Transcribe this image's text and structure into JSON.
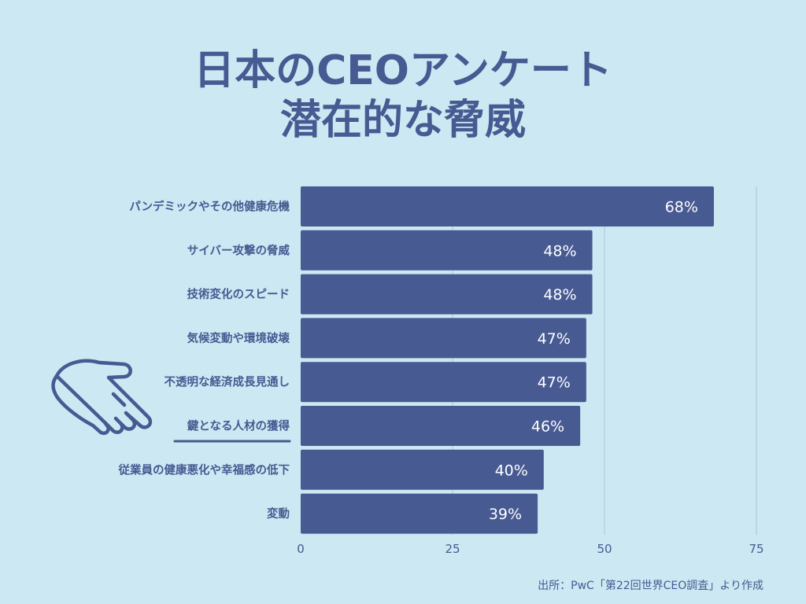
{
  "title_line1": "日本のCEOアンケート",
  "title_line2": "潜在的な脅威",
  "source": "出所：PwC「第22回世界CEO調査」より作成",
  "colors": {
    "background": "#cce8f2",
    "bar": "#475a92",
    "text": "#475a92",
    "grid": "#a9c9d6",
    "bar_label": "#ffffff"
  },
  "chart_data": {
    "type": "bar",
    "orientation": "horizontal",
    "categories": [
      "パンデミックやその他健康危機",
      "サイバー攻撃の脅威",
      "技術変化のスピード",
      "気候変動や環境破壊",
      "不透明な経済成長見通し",
      "鍵となる人材の獲得",
      "従業員の健康悪化や幸福感の低下",
      "変動"
    ],
    "values": [
      68,
      48,
      48,
      47,
      47,
      46,
      40,
      39
    ],
    "value_labels": [
      "68%",
      "48%",
      "48%",
      "47%",
      "47%",
      "46%",
      "40%",
      "39%"
    ],
    "xlim": [
      0,
      75
    ],
    "xticks": [
      0,
      25,
      50,
      75
    ],
    "xtick_labels": [
      "0",
      "25",
      "50",
      "75"
    ],
    "grid": true,
    "highlighted_category": "鍵となる人材の獲得",
    "pointer_icon": "pointing-hand-icon"
  }
}
